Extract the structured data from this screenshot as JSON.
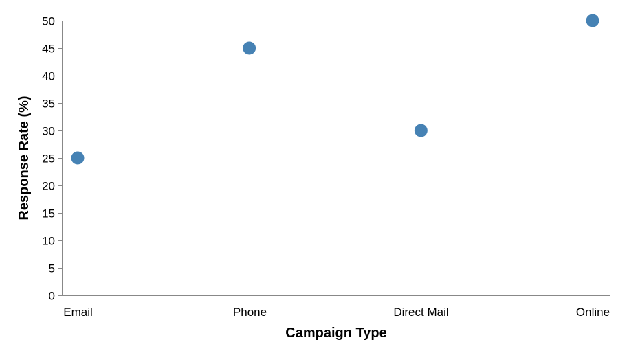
{
  "chart_data": {
    "type": "scatter",
    "categories": [
      "Email",
      "Phone",
      "Direct Mail",
      "Online"
    ],
    "values": [
      25,
      45,
      30,
      50
    ],
    "title": "",
    "xlabel": "Campaign Type",
    "ylabel": "Response Rate (%)",
    "ylim": [
      0,
      50
    ],
    "yticks": [
      0,
      5,
      10,
      15,
      20,
      25,
      30,
      35,
      40,
      45,
      50
    ],
    "grid": false,
    "point_color": "#4682b4"
  }
}
